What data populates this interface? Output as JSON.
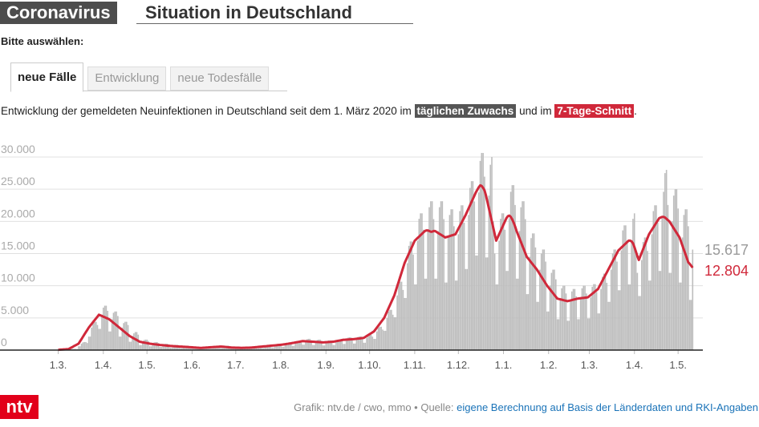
{
  "header": {
    "title_box": "Coronavirus",
    "title": "Situation in Deutschland"
  },
  "prompt": "Bitte auswählen:",
  "tabs": [
    "neue Fälle",
    "Entwicklung",
    "neue Todesfälle"
  ],
  "description": {
    "before": "Entwicklung der gemeldeten Neuinfektionen in Deutschland seit dem 1. März 2020 im ",
    "middle": " und im ",
    "after": "."
  },
  "chart_data": {
    "type": "bar",
    "xlim": [
      -40,
      443
    ],
    "xticks": [
      {
        "value": 0,
        "label": "1.3."
      },
      {
        "value": 31,
        "label": "1.4."
      },
      {
        "value": 61,
        "label": "1.5."
      },
      {
        "value": 92,
        "label": "1.6."
      },
      {
        "value": 122,
        "label": "1.7."
      },
      {
        "value": 153,
        "label": "1.8."
      },
      {
        "value": 184,
        "label": "1.9."
      },
      {
        "value": 214,
        "label": "1.10."
      },
      {
        "value": 245,
        "label": "1.11."
      },
      {
        "value": 275,
        "label": "1.12."
      },
      {
        "value": 306,
        "label": "1.1."
      },
      {
        "value": 337,
        "label": "1.2."
      },
      {
        "value": 365,
        "label": "1.3."
      },
      {
        "value": 396,
        "label": "1.4."
      },
      {
        "value": 426,
        "label": "1.5."
      }
    ],
    "ylim": [
      0,
      30000
    ],
    "yticks": [
      0,
      {
        "value": 5000,
        "label": "5.000"
      },
      {
        "value": 10000,
        "label": "10.000"
      },
      {
        "value": 15000,
        "label": "15.000"
      },
      {
        "value": 20000,
        "label": "20.000"
      },
      {
        "value": 25000,
        "label": "25.000"
      },
      {
        "value": 30000,
        "label": "30.000"
      }
    ],
    "grid": true,
    "series": [
      {
        "name": "täglichen Zuwachs",
        "type": "bar",
        "color": "#bdbdbd",
        "value_labels": {
          "436": "15.617"
        },
        "values": [
          30,
          30,
          50,
          60,
          60,
          60,
          60,
          90,
          90,
          150,
          180,
          190,
          190,
          170,
          600,
          600,
          1000,
          1200,
          1250,
          1250,
          1100,
          2100,
          2100,
          3500,
          4200,
          4400,
          4400,
          3900,
          3300,
          3300,
          5500,
          6600,
          6900,
          6900,
          6100,
          2900,
          2900,
          4800,
          5800,
          6000,
          6000,
          5300,
          2100,
          2100,
          3500,
          4200,
          4400,
          4400,
          3900,
          1300,
          1300,
          2200,
          2600,
          2800,
          2800,
          2400,
          780,
          780,
          1300,
          1560,
          1630,
          1630,
          1430,
          600,
          600,
          1000,
          1200,
          1250,
          1250,
          1100,
          480,
          480,
          800,
          960,
          1000,
          1000,
          880,
          390,
          390,
          650,
          780,
          810,
          810,
          720,
          330,
          330,
          550,
          660,
          690,
          690,
          610,
          270,
          270,
          450,
          540,
          560,
          560,
          500,
          210,
          210,
          350,
          420,
          440,
          440,
          390,
          270,
          270,
          450,
          540,
          560,
          560,
          500,
          330,
          330,
          550,
          660,
          690,
          690,
          610,
          240,
          240,
          400,
          480,
          500,
          500,
          440,
          210,
          210,
          350,
          420,
          440,
          440,
          390,
          240,
          240,
          400,
          480,
          500,
          500,
          440,
          330,
          330,
          550,
          660,
          690,
          690,
          610,
          420,
          420,
          700,
          840,
          880,
          880,
          770,
          510,
          510,
          850,
          1020,
          1060,
          1060,
          940,
          660,
          660,
          1100,
          1320,
          1380,
          1380,
          1210,
          840,
          840,
          1400,
          1680,
          1750,
          1750,
          1540,
          780,
          780,
          1300,
          1560,
          1630,
          1630,
          1430,
          720,
          720,
          1200,
          1440,
          1500,
          1500,
          1320,
          780,
          780,
          1300,
          1560,
          1630,
          1630,
          1430,
          960,
          960,
          1600,
          1920,
          2000,
          2000,
          1760,
          1020,
          1020,
          1700,
          2040,
          2130,
          2130,
          1870,
          1140,
          1140,
          1900,
          2280,
          2380,
          2380,
          2090,
          1740,
          1740,
          2900,
          3480,
          3630,
          3630,
          3190,
          3000,
          3000,
          5000,
          6000,
          6250,
          6250,
          5500,
          5100,
          5100,
          8500,
          10200,
          10630,
          10630,
          9350,
          8100,
          8100,
          13500,
          16200,
          16880,
          16880,
          14850,
          10200,
          10200,
          17000,
          20400,
          21250,
          21250,
          18700,
          11100,
          11100,
          18500,
          22200,
          23130,
          23130,
          20350,
          11100,
          11100,
          18500,
          22200,
          23130,
          23130,
          20350,
          10500,
          10500,
          17500,
          21000,
          21880,
          21880,
          19250,
          10800,
          10800,
          18000,
          21600,
          22500,
          22500,
          19800,
          12600,
          12600,
          21000,
          25200,
          26250,
          26250,
          23100,
          14700,
          14700,
          24500,
          29400,
          30630,
          30630,
          26950,
          14400,
          14400,
          24000,
          28800,
          30000,
          20000,
          15000,
          10200,
          10200,
          17000,
          20400,
          21250,
          21250,
          18700,
          12300,
          12300,
          20500,
          24600,
          25630,
          25630,
          22550,
          11100,
          11100,
          18500,
          22200,
          23130,
          23130,
          20350,
          8700,
          8700,
          14500,
          17400,
          18130,
          18130,
          15950,
          7500,
          7500,
          12500,
          15000,
          15630,
          15630,
          13750,
          6000,
          6000,
          10000,
          12000,
          12500,
          12500,
          11000,
          4800,
          4800,
          8000,
          9600,
          10000,
          10000,
          8800,
          4560,
          4560,
          7600,
          9120,
          9500,
          9500,
          8360,
          4800,
          4800,
          8000,
          9600,
          10000,
          10000,
          8800,
          4920,
          4920,
          8200,
          9840,
          10250,
          10250,
          9020,
          5700,
          5700,
          9500,
          11400,
          11880,
          11880,
          10450,
          7500,
          7500,
          12500,
          15000,
          15630,
          15630,
          13750,
          9300,
          9300,
          15500,
          18600,
          19380,
          19380,
          17050,
          10200,
          10200,
          17000,
          20400,
          21250,
          15000,
          12000,
          8400,
          8400,
          14000,
          16800,
          17500,
          17500,
          15400,
          10800,
          10800,
          18000,
          21600,
          22500,
          22500,
          19800,
          12300,
          12300,
          20500,
          24600,
          27500,
          28000,
          22550,
          12000,
          12000,
          20000,
          24000,
          25000,
          25000,
          22000,
          10500,
          10500,
          17500,
          21000,
          21880,
          21880,
          19250,
          7800,
          7800,
          15617
        ]
      },
      {
        "name": "7-Tage-Schnitt",
        "type": "line",
        "color": "#d0283a",
        "value_labels": {
          "436": "12.804"
        },
        "values": [
          50,
          60,
          80,
          90,
          110,
          120,
          140,
          150,
          270,
          390,
          510,
          640,
          760,
          880,
          1000,
          1360,
          1710,
          2070,
          2430,
          2790,
          3140,
          3500,
          3790,
          4070,
          4360,
          4640,
          4930,
          5210,
          5500,
          5400,
          5300,
          5200,
          5100,
          5000,
          4900,
          4800,
          4610,
          4430,
          4240,
          4060,
          3870,
          3690,
          3500,
          3310,
          3130,
          2940,
          2760,
          2570,
          2390,
          2200,
          2070,
          1940,
          1810,
          1690,
          1560,
          1430,
          1300,
          1260,
          1210,
          1170,
          1130,
          1090,
          1040,
          1000,
          970,
          940,
          910,
          890,
          860,
          830,
          800,
          780,
          760,
          740,
          710,
          690,
          670,
          650,
          640,
          620,
          610,
          590,
          580,
          560,
          550,
          540,
          520,
          510,
          490,
          480,
          460,
          450,
          440,
          420,
          410,
          390,
          380,
          360,
          350,
          360,
          380,
          390,
          410,
          420,
          440,
          450,
          460,
          480,
          490,
          510,
          520,
          540,
          550,
          530,
          510,
          490,
          460,
          440,
          420,
          400,
          390,
          390,
          380,
          370,
          370,
          360,
          350,
          360,
          360,
          370,
          380,
          380,
          390,
          400,
          420,
          440,
          460,
          490,
          510,
          530,
          550,
          570,
          590,
          610,
          640,
          660,
          680,
          700,
          720,
          740,
          760,
          790,
          810,
          830,
          850,
          890,
          920,
          960,
          990,
          1030,
          1060,
          1100,
          1140,
          1190,
          1230,
          1270,
          1310,
          1360,
          1400,
          1390,
          1370,
          1360,
          1340,
          1330,
          1310,
          1300,
          1290,
          1270,
          1260,
          1240,
          1230,
          1210,
          1200,
          1210,
          1230,
          1240,
          1260,
          1270,
          1290,
          1300,
          1340,
          1390,
          1430,
          1470,
          1510,
          1560,
          1600,
          1610,
          1630,
          1640,
          1660,
          1670,
          1690,
          1700,
          1730,
          1760,
          1790,
          1810,
          1840,
          1870,
          1900,
          2040,
          2190,
          2330,
          2470,
          2610,
          2760,
          2900,
          3200,
          3500,
          3800,
          4100,
          4400,
          4700,
          5000,
          5500,
          6000,
          6500,
          7000,
          7500,
          8000,
          8500,
          9210,
          9930,
          10640,
          11360,
          12070,
          12790,
          13500,
          14000,
          14500,
          15000,
          15500,
          16000,
          16500,
          17000,
          17210,
          17430,
          17640,
          17860,
          18070,
          18290,
          18500,
          18600,
          18600,
          18500,
          18400,
          18400,
          18500,
          18500,
          18360,
          18210,
          18070,
          17930,
          17790,
          17640,
          17500,
          17570,
          17640,
          17710,
          17790,
          17860,
          17930,
          18000,
          18430,
          18860,
          19290,
          19710,
          20140,
          20570,
          21000,
          21500,
          22000,
          22500,
          23000,
          23500,
          24000,
          24500,
          24900,
          25300,
          25600,
          25500,
          25200,
          24800,
          24000,
          23000,
          22000,
          21000,
          20000,
          19000,
          18000,
          17000,
          17500,
          18000,
          18500,
          19000,
          19500,
          20000,
          20500,
          20800,
          20900,
          20700,
          20300,
          19800,
          19200,
          18500,
          17930,
          17360,
          16790,
          16210,
          15640,
          15070,
          14500,
          14210,
          13930,
          13640,
          13360,
          13070,
          12790,
          12500,
          12140,
          11790,
          11430,
          11070,
          10710,
          10360,
          10000,
          9710,
          9430,
          9140,
          8860,
          8570,
          8290,
          8000,
          7940,
          7890,
          7830,
          7770,
          7710,
          7660,
          7600,
          7660,
          7710,
          7770,
          7830,
          7890,
          7940,
          8000,
          8030,
          8060,
          8090,
          8110,
          8140,
          8170,
          8200,
          8390,
          8570,
          8760,
          8940,
          9130,
          9310,
          9500,
          9930,
          10360,
          10790,
          11210,
          11640,
          12070,
          12500,
          12930,
          13360,
          13790,
          14210,
          14640,
          15070,
          15500,
          15710,
          15930,
          16140,
          16360,
          16570,
          16790,
          17000,
          17000,
          16900,
          16600,
          16000,
          15300,
          14600,
          14000,
          14570,
          15140,
          15710,
          16290,
          16860,
          17430,
          18000,
          18360,
          18710,
          19070,
          19430,
          19790,
          20140,
          20500,
          20600,
          20700,
          20700,
          20600,
          20400,
          20200,
          20000,
          19640,
          19290,
          18930,
          18570,
          18210,
          17860,
          17500,
          16860,
          16210,
          15570,
          14930,
          14290,
          13640,
          13400,
          13100,
          12804
        ]
      }
    ]
  },
  "footer": {
    "logo": "ntv",
    "credit": "Grafik: ntv.de / cwo, mmo • Quelle: ",
    "source_link": "eigene Berechnung auf Basis der Länderdaten und RKI-Angaben"
  }
}
